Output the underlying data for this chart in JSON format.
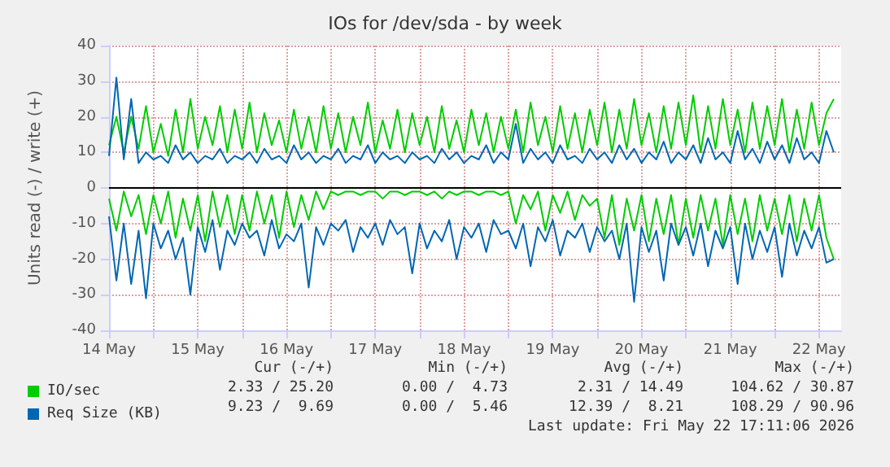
{
  "chart_data": {
    "type": "line",
    "title": "IOs for /dev/sda - by week",
    "ylabel": "Units read (-) / write (+)",
    "x": [
      "2026-05-14T12:00",
      "2026-05-14T14:00",
      "2026-05-14T16:00",
      "2026-05-14T18:00",
      "2026-05-14T20:00",
      "2026-05-14T22:00",
      "2026-05-15T00:00",
      "2026-05-15T02:00",
      "2026-05-15T04:00",
      "2026-05-15T06:00",
      "2026-05-15T08:00",
      "2026-05-15T10:00",
      "2026-05-15T12:00",
      "2026-05-15T14:00",
      "2026-05-15T16:00",
      "2026-05-15T18:00",
      "2026-05-15T20:00",
      "2026-05-15T22:00",
      "2026-05-16T00:00",
      "2026-05-16T02:00",
      "2026-05-16T04:00",
      "2026-05-16T06:00",
      "2026-05-16T08:00",
      "2026-05-16T10:00",
      "2026-05-16T12:00",
      "2026-05-16T14:00",
      "2026-05-16T16:00",
      "2026-05-16T18:00",
      "2026-05-16T20:00",
      "2026-05-16T22:00",
      "2026-05-17T00:00",
      "2026-05-17T02:00",
      "2026-05-17T04:00",
      "2026-05-17T06:00",
      "2026-05-17T08:00",
      "2026-05-17T10:00",
      "2026-05-17T12:00",
      "2026-05-17T14:00",
      "2026-05-17T16:00",
      "2026-05-17T18:00",
      "2026-05-17T20:00",
      "2026-05-17T22:00",
      "2026-05-18T00:00",
      "2026-05-18T02:00",
      "2026-05-18T04:00",
      "2026-05-18T06:00",
      "2026-05-18T08:00",
      "2026-05-18T10:00",
      "2026-05-18T12:00",
      "2026-05-18T14:00",
      "2026-05-18T16:00",
      "2026-05-18T18:00",
      "2026-05-18T20:00",
      "2026-05-18T22:00",
      "2026-05-19T00:00",
      "2026-05-19T02:00",
      "2026-05-19T04:00",
      "2026-05-19T06:00",
      "2026-05-19T08:00",
      "2026-05-19T10:00",
      "2026-05-19T12:00",
      "2026-05-19T14:00",
      "2026-05-19T16:00",
      "2026-05-19T18:00",
      "2026-05-19T20:00",
      "2026-05-19T22:00",
      "2026-05-20T00:00",
      "2026-05-20T02:00",
      "2026-05-20T04:00",
      "2026-05-20T06:00",
      "2026-05-20T08:00",
      "2026-05-20T10:00",
      "2026-05-20T12:00",
      "2026-05-20T14:00",
      "2026-05-20T16:00",
      "2026-05-20T18:00",
      "2026-05-20T20:00",
      "2026-05-20T22:00",
      "2026-05-21T00:00",
      "2026-05-21T02:00",
      "2026-05-21T04:00",
      "2026-05-21T06:00",
      "2026-05-21T08:00",
      "2026-05-21T10:00",
      "2026-05-21T12:00",
      "2026-05-21T14:00",
      "2026-05-21T16:00",
      "2026-05-21T18:00",
      "2026-05-21T20:00",
      "2026-05-21T22:00",
      "2026-05-22T00:00",
      "2026-05-22T02:00",
      "2026-05-22T04:00",
      "2026-05-22T06:00",
      "2026-05-22T08:00",
      "2026-05-22T10:00",
      "2026-05-22T12:00",
      "2026-05-22T14:00",
      "2026-05-22T16:00"
    ],
    "series": [
      {
        "name": "IO/sec",
        "color": "#00cc00",
        "values": [
          12,
          20,
          10,
          20,
          11,
          23,
          10,
          18,
          9,
          22,
          10,
          25,
          11,
          20,
          12,
          23,
          10,
          22,
          11,
          24,
          10,
          21,
          12,
          19,
          10,
          22,
          11,
          20,
          10,
          23,
          11,
          21,
          10,
          20,
          12,
          24,
          10,
          19,
          11,
          22,
          10,
          21,
          12,
          20,
          10,
          23,
          11,
          19,
          10,
          22,
          12,
          21,
          10,
          20,
          11,
          22,
          10,
          24,
          12,
          20,
          10,
          23,
          11,
          21,
          10,
          22,
          12,
          24,
          10,
          22,
          11,
          25,
          12,
          21,
          10,
          23,
          11,
          24,
          12,
          26,
          10,
          23,
          11,
          25,
          12,
          22,
          10,
          24,
          11,
          23,
          12,
          25,
          10,
          22,
          11,
          24,
          12,
          21,
          25
        ]
      },
      {
        "color": "#00cc00",
        "values": [
          -3,
          -12,
          -1,
          -8,
          -2,
          -13,
          -2,
          -10,
          -1,
          -14,
          -3,
          -12,
          -2,
          -15,
          -1,
          -11,
          -2,
          -13,
          -2,
          -12,
          -1,
          -10,
          -2,
          -14,
          -1,
          -11,
          -2,
          -9,
          -1,
          -6,
          -1,
          -2,
          -1,
          -1,
          -2,
          -1,
          -1,
          -3,
          -1,
          -1,
          -2,
          -1,
          -1,
          -2,
          -1,
          -3,
          -1,
          -2,
          -1,
          -1,
          -2,
          -1,
          -1,
          -2,
          -1,
          -10,
          -2,
          -6,
          -1,
          -12,
          -2,
          -7,
          -1,
          -9,
          -2,
          -5,
          -3,
          -14,
          -2,
          -16,
          -3,
          -12,
          -2,
          -15,
          -3,
          -13,
          -2,
          -16,
          -3,
          -14,
          -2,
          -12,
          -3,
          -16,
          -2,
          -13,
          -3,
          -15,
          -2,
          -12,
          -3,
          -13,
          -2,
          -15,
          -3,
          -12,
          -2,
          -14,
          -20
        ]
      },
      {
        "name": "Req Size (KB)",
        "color": "#0066b3",
        "values": [
          9,
          31,
          8,
          25,
          7,
          10,
          8,
          9,
          7,
          12,
          8,
          10,
          7,
          9,
          8,
          11,
          7,
          9,
          8,
          10,
          7,
          11,
          8,
          9,
          7,
          12,
          8,
          10,
          7,
          9,
          8,
          11,
          7,
          9,
          8,
          12,
          7,
          10,
          8,
          9,
          7,
          10,
          8,
          9,
          7,
          11,
          8,
          10,
          7,
          9,
          8,
          12,
          7,
          10,
          8,
          18,
          7,
          11,
          8,
          10,
          7,
          12,
          8,
          9,
          7,
          11,
          8,
          10,
          7,
          12,
          8,
          11,
          7,
          10,
          8,
          13,
          7,
          10,
          8,
          12,
          7,
          14,
          8,
          10,
          7,
          16,
          8,
          11,
          7,
          13,
          8,
          12,
          7,
          14,
          8,
          10,
          7,
          16,
          10
        ]
      },
      {
        "color": "#0066b3",
        "values": [
          -8,
          -26,
          -10,
          -27,
          -12,
          -31,
          -10,
          -17,
          -12,
          -20,
          -14,
          -30,
          -11,
          -18,
          -9,
          -23,
          -12,
          -16,
          -10,
          -14,
          -12,
          -19,
          -9,
          -17,
          -13,
          -15,
          -10,
          -28,
          -11,
          -16,
          -10,
          -12,
          -9,
          -18,
          -11,
          -14,
          -10,
          -16,
          -9,
          -13,
          -11,
          -24,
          -10,
          -17,
          -12,
          -15,
          -9,
          -20,
          -11,
          -14,
          -10,
          -18,
          -9,
          -13,
          -12,
          -17,
          -10,
          -22,
          -11,
          -15,
          -9,
          -19,
          -12,
          -14,
          -10,
          -18,
          -11,
          -15,
          -12,
          -20,
          -10,
          -32,
          -11,
          -18,
          -12,
          -26,
          -10,
          -16,
          -11,
          -19,
          -10,
          -22,
          -12,
          -17,
          -11,
          -27,
          -10,
          -20,
          -12,
          -18,
          -11,
          -25,
          -10,
          -19,
          -12,
          -17,
          -11,
          -21,
          -20
        ]
      }
    ],
    "xlim": [
      "2026-05-14T12:00",
      "2026-05-22T18:00"
    ],
    "xticks": [
      {
        "value": "2026-05-14T12:00",
        "label": "14 May"
      },
      {
        "value": "2026-05-15T00:00",
        "label": null
      },
      {
        "value": "2026-05-15T12:00",
        "label": "15 May"
      },
      {
        "value": "2026-05-16T00:00",
        "label": null
      },
      {
        "value": "2026-05-16T12:00",
        "label": "16 May"
      },
      {
        "value": "2026-05-17T00:00",
        "label": null
      },
      {
        "value": "2026-05-17T12:00",
        "label": "17 May"
      },
      {
        "value": "2026-05-18T00:00",
        "label": null
      },
      {
        "value": "2026-05-18T12:00",
        "label": "18 May"
      },
      {
        "value": "2026-05-19T00:00",
        "label": null
      },
      {
        "value": "2026-05-19T12:00",
        "label": "19 May"
      },
      {
        "value": "2026-05-20T00:00",
        "label": null
      },
      {
        "value": "2026-05-20T12:00",
        "label": "20 May"
      },
      {
        "value": "2026-05-21T00:00",
        "label": null
      },
      {
        "value": "2026-05-21T12:00",
        "label": "21 May"
      },
      {
        "value": "2026-05-22T00:00",
        "label": null
      },
      {
        "value": "2026-05-22T12:00",
        "label": "22 May"
      }
    ],
    "ylim": [
      -40,
      40
    ],
    "yticks": [
      -40,
      -30,
      -20,
      -10,
      0,
      10,
      20,
      30,
      40
    ],
    "ref_lines": [
      {
        "axis": "y",
        "value": 0,
        "color": "#000000"
      }
    ],
    "grid": true,
    "legend": "bottom left",
    "marker": "none",
    "line_style": "solid",
    "annotations": [
      "Cur (-/+)",
      "Min (-/+)",
      "Avg (-/+)",
      "Max (-/+)",
      "2.33 / 25.20",
      "0.00 /  4.73",
      "2.31 / 14.49",
      "104.62 / 30.87",
      "9.23 /  9.69",
      "0.00 /  5.46",
      "12.39 /  8.21",
      "108.29 / 90.96",
      "Last update: Fri May 22 17:11:06 2026"
    ]
  }
}
